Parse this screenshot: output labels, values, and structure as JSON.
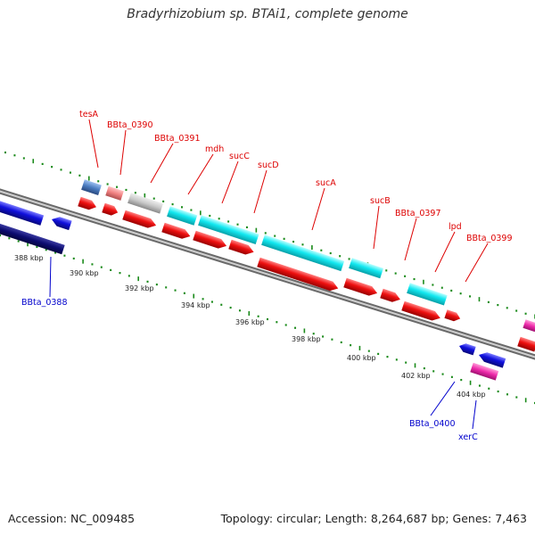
{
  "title": "Bradyrhizobium sp. BTAi1, complete genome",
  "footer": {
    "accession": "Accession: NC_009485",
    "summary": "Topology: circular; Length: 8,264,687 bp; Genes: 7,463"
  },
  "colors": {
    "tick": "#1a8a1a",
    "backbone": "#8c8c8c",
    "label_red": "#dd0000",
    "label_blue": "#0000cc",
    "blue": "#1010dd",
    "navy": "#0c0c70",
    "red": "#ee1010",
    "cyan": "#12e8f0",
    "gray": "#c8c8c8",
    "steel": "#4a7cc0",
    "salmon": "#f08080",
    "magenta": "#ee2aaa"
  },
  "kbp_labels": [
    "388 kbp",
    "390 kbp",
    "392 kbp",
    "394 kbp",
    "396 kbp",
    "398 kbp",
    "400 kbp",
    "402 kbp",
    "404 kbp"
  ],
  "gene_labels_top": [
    "tesA",
    "BBta_0390",
    "BBta_0391",
    "mdh",
    "sucC",
    "sucD",
    "sucA",
    "sucB",
    "BBta_0397",
    "lpd",
    "BBta_0399"
  ],
  "gene_labels_bottom": [
    "BBta_0388",
    "BBta_0400",
    "xerC"
  ]
}
